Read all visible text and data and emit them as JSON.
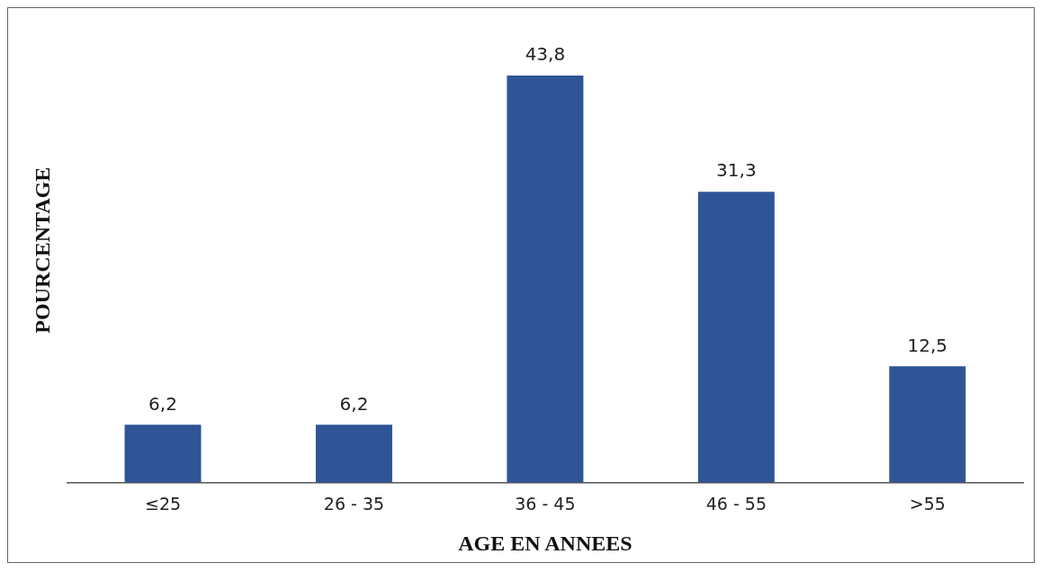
{
  "chart_data": {
    "type": "bar",
    "xlabel": "AGE EN ANNEES",
    "ylabel": "POURCENTAGE",
    "categories": [
      "≤25",
      "26 - 35",
      "36 - 45",
      "46 - 55",
      ">55"
    ],
    "values": [
      6.2,
      6.2,
      43.8,
      31.3,
      12.5
    ],
    "value_labels": [
      "6,2",
      "6,2",
      "43,8",
      "31,3",
      "12,5"
    ],
    "color": "#2f5597",
    "grid": false,
    "legend": false
  }
}
